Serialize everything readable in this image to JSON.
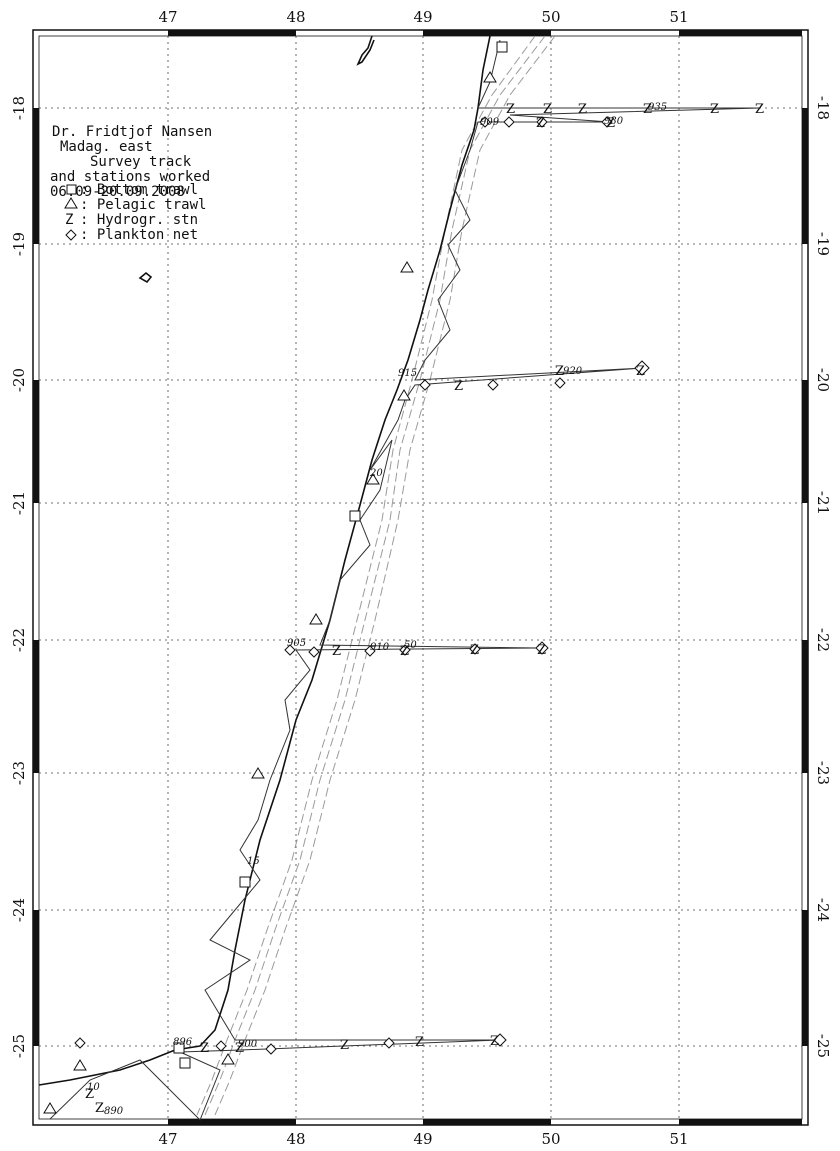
{
  "map": {
    "lon_range": [
      46.0,
      52.0
    ],
    "lat_range": [
      -25.6,
      -17.45
    ],
    "lon_ticks": [
      "47",
      "48",
      "49",
      "50",
      "51"
    ],
    "lat_ticks": [
      "-18",
      "-19",
      "-20",
      "-21",
      "-22",
      "-23",
      "-24",
      "-25"
    ],
    "grid": "dotted",
    "colors": {
      "coast": "#111111",
      "track": "#333333",
      "depth_contours": "#9a9a9a",
      "grid": "#444444"
    }
  },
  "legend": {
    "lines": [
      "Dr. Fridtjof Nansen",
      "Madag. east",
      "Survey track",
      "and stations worked",
      "06.09-20.09.2008"
    ],
    "symbols": [
      {
        "label": ": Bottom trawl",
        "icon": "square"
      },
      {
        "label": ": Pelagic trawl",
        "icon": "triangle"
      },
      {
        "label": ": Hydrogr. stn",
        "icon": "z-mark"
      },
      {
        "label": ": Plankton net",
        "icon": "diamond"
      }
    ]
  },
  "station_labels": [
    "935",
    "909",
    "930",
    "915",
    "920",
    "20",
    "905",
    "910",
    "50",
    "15",
    "896",
    "900",
    "10",
    "890"
  ]
}
